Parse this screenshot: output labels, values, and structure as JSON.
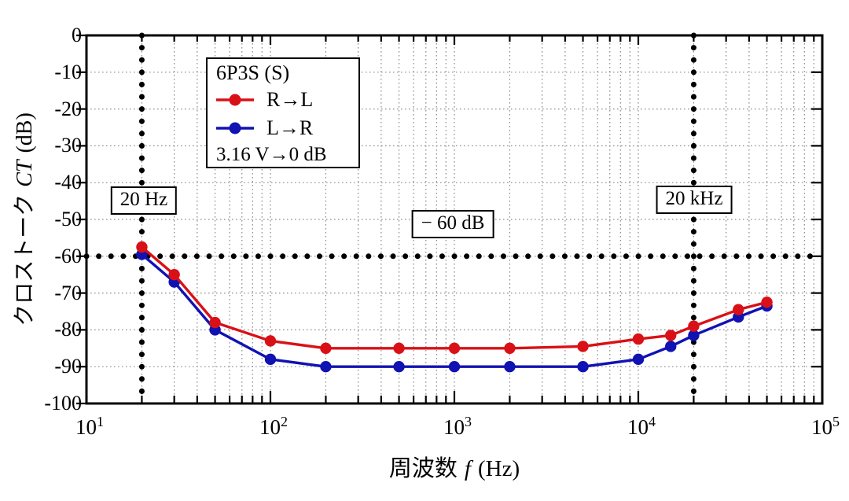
{
  "chart_data": {
    "type": "line",
    "x_scale": "log",
    "xlim": [
      10,
      100000
    ],
    "ylim": [
      -100,
      0
    ],
    "grid": "dotted",
    "xlabel": {
      "prefix": "周波数",
      "var": "f",
      "suffix": "(Hz)"
    },
    "ylabel": {
      "prefix": "クロストーク",
      "var": "CT",
      "suffix": "(dB)"
    },
    "x_ticks": [
      {
        "base": "10",
        "exp": "1"
      },
      {
        "base": "10",
        "exp": "2"
      },
      {
        "base": "10",
        "exp": "3"
      },
      {
        "base": "10",
        "exp": "4"
      },
      {
        "base": "10",
        "exp": "5"
      }
    ],
    "y_ticks": [
      "0",
      "-10",
      "-20",
      "-30",
      "-40",
      "-50",
      "-60",
      "-70",
      "-80",
      "-90",
      "-100"
    ],
    "x": [
      20,
      30,
      50,
      100,
      200,
      500,
      1000,
      2000,
      5000,
      10000,
      15000,
      20000,
      35000,
      50000
    ],
    "series": [
      {
        "name": "R→L",
        "color": "#d91117",
        "values": [
          -57.5,
          -65,
          -78,
          -83,
          -85,
          -85,
          -85,
          -85,
          -84.5,
          -82.5,
          -81.5,
          -79,
          -74.5,
          -72.5
        ]
      },
      {
        "name": "L→R",
        "color": "#1112b2",
        "values": [
          -59.5,
          -67,
          -80,
          -88,
          -90,
          -90,
          -90,
          -90,
          -90,
          -88,
          -84.5,
          -81.5,
          -76.5,
          -73.5
        ]
      }
    ],
    "ref_lines": [
      {
        "axis": "x",
        "value": 20,
        "label": "20 Hz"
      },
      {
        "axis": "x",
        "value": 20000,
        "label": "20 kHz"
      },
      {
        "axis": "y",
        "value": -60,
        "label": "− 60 dB"
      }
    ],
    "legend_position": "top-left"
  },
  "legend": {
    "title": "6P3S (S)",
    "note": "3.16 V→0 dB"
  }
}
